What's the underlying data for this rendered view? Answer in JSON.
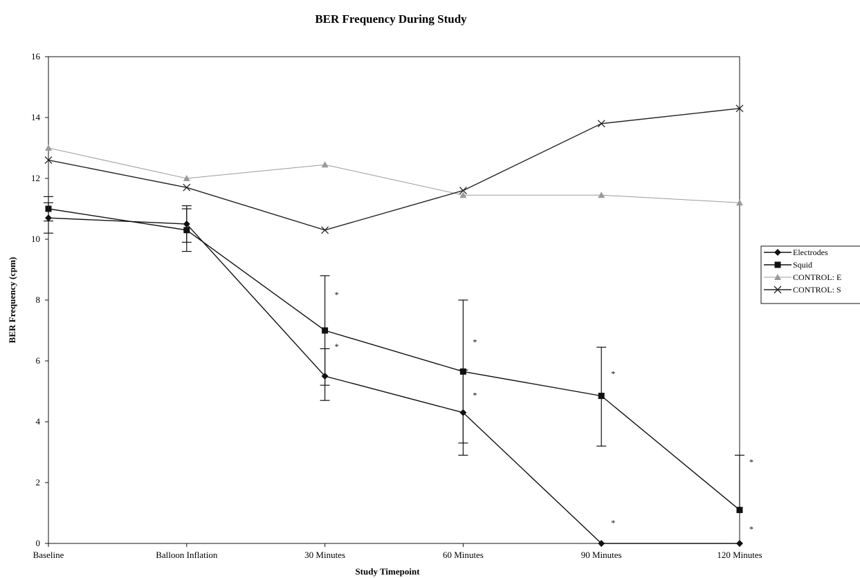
{
  "chart_data": {
    "type": "line",
    "title": "BER Frequency During Study",
    "xlabel": "Study Timepoint",
    "ylabel": "BER Frequency (cpm)",
    "categories": [
      "Baseline",
      "Balloon Inflation",
      "30 Minutes",
      "60 Minutes",
      "90 Minutes",
      "120 Minutes"
    ],
    "ylim": [
      0,
      16
    ],
    "yticks": [
      "0",
      "2",
      "4",
      "6",
      "8",
      "10",
      "12",
      "14",
      "16"
    ],
    "grid": false,
    "legend_position": "right",
    "series": [
      {
        "name": "Electrodes",
        "marker": "diamond",
        "color": "#111111",
        "values": [
          10.7,
          10.5,
          5.5,
          4.3,
          0,
          0
        ],
        "error_low": [
          10.2,
          9.9,
          4.7,
          2.9,
          null,
          null
        ],
        "error_high": [
          11.2,
          11.1,
          6.4,
          5.7,
          null,
          null
        ]
      },
      {
        "name": "Squid",
        "marker": "square",
        "color": "#111111",
        "values": [
          11.0,
          10.3,
          7.0,
          5.65,
          4.85,
          1.1
        ],
        "error_low": [
          10.6,
          9.6,
          5.2,
          3.3,
          3.2,
          null
        ],
        "error_high": [
          11.4,
          11.0,
          8.8,
          8.0,
          6.45,
          2.9
        ]
      },
      {
        "name": "CONTROL: E",
        "marker": "triangle",
        "color": "#9a9a9a",
        "values": [
          13.0,
          12.0,
          12.45,
          11.45,
          11.45,
          11.2
        ]
      },
      {
        "name": "CONTROL: S",
        "marker": "x",
        "color": "#222222",
        "values": [
          12.6,
          11.7,
          10.3,
          11.6,
          13.8,
          14.3
        ]
      }
    ],
    "annotations": [
      {
        "text": "*",
        "category_index": 2,
        "y": 8.2
      },
      {
        "text": "*",
        "category_index": 2,
        "y": 6.5
      },
      {
        "text": "*",
        "category_index": 3,
        "y": 6.65
      },
      {
        "text": "*",
        "category_index": 3,
        "y": 4.9
      },
      {
        "text": "*",
        "category_index": 4,
        "y": 5.6
      },
      {
        "text": "*",
        "category_index": 4,
        "y": 0.7
      },
      {
        "text": "*",
        "category_index": 5,
        "y": 2.7
      },
      {
        "text": "*",
        "category_index": 5,
        "y": 0.5
      }
    ]
  }
}
